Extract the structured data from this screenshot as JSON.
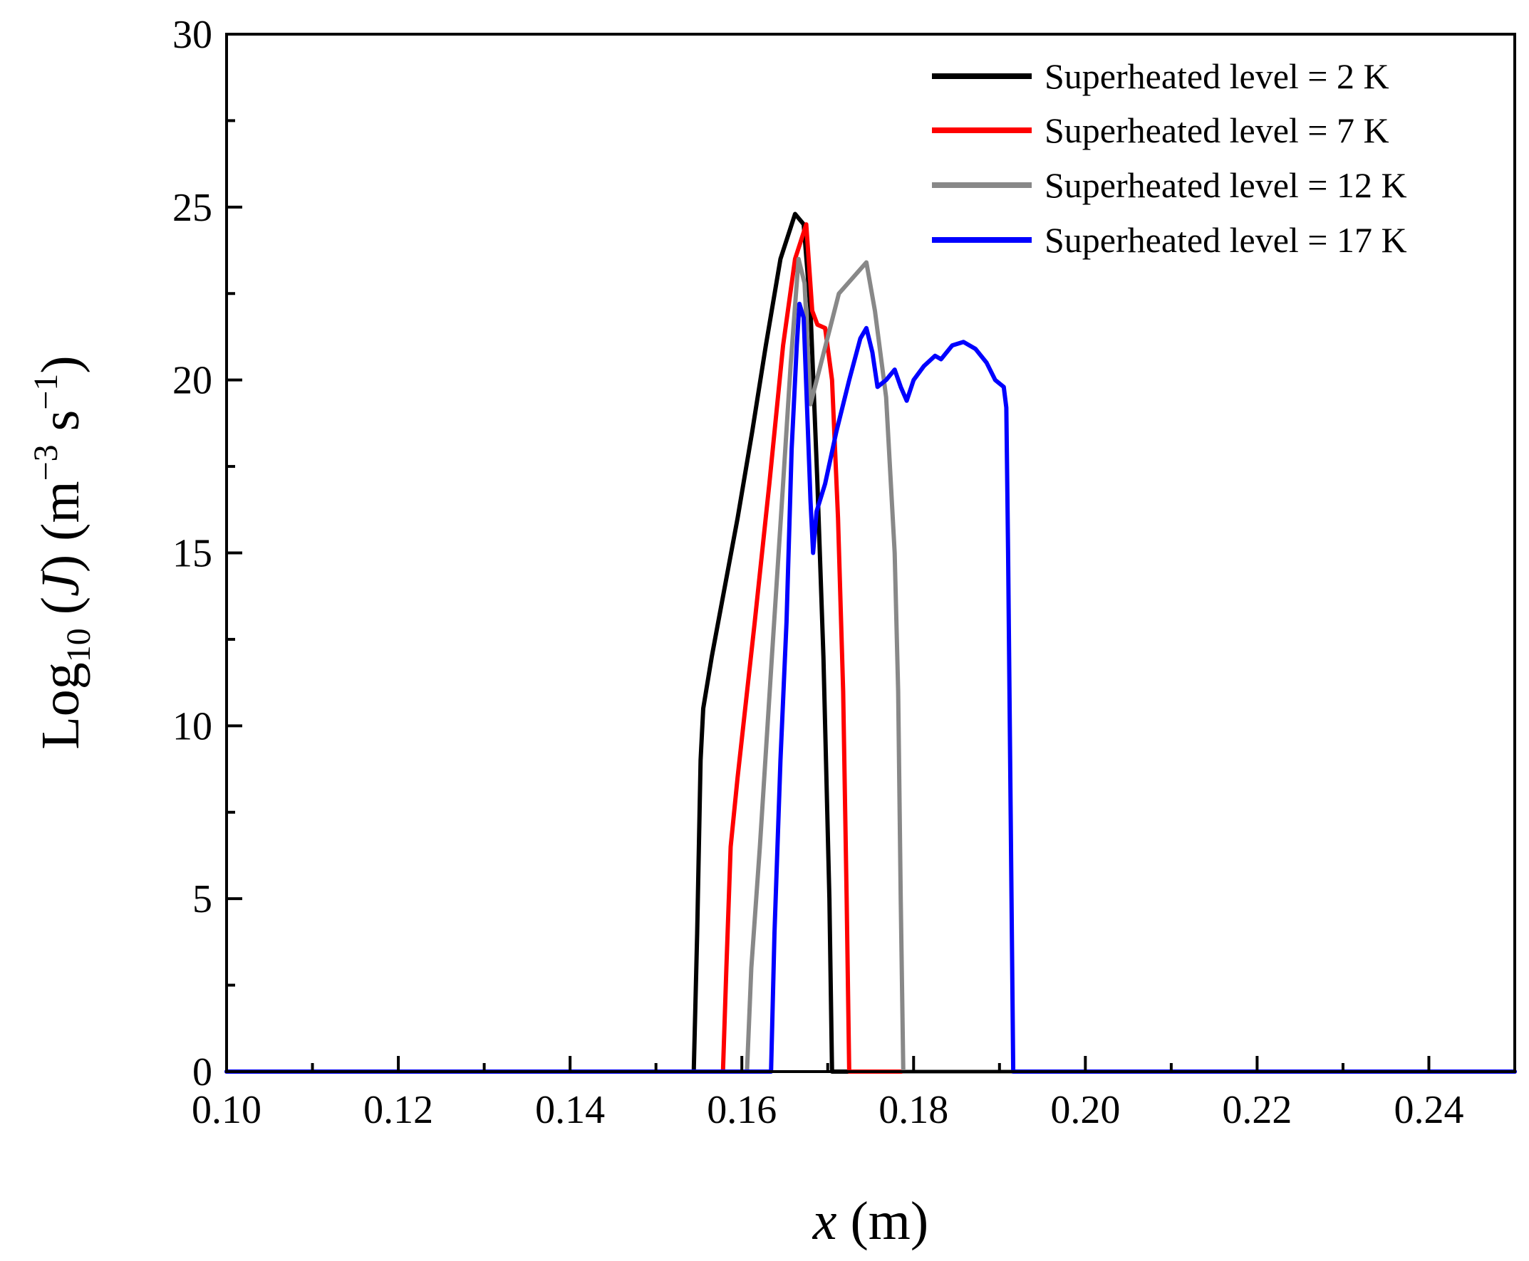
{
  "chart_data": {
    "type": "line",
    "title": "",
    "xlabel": {
      "italic": "x",
      "rest": " (m)"
    },
    "ylabel": {
      "prefix": "Log",
      "sub": "10",
      "mid": " (",
      "italic": "J",
      "unit_open": ") (m",
      "sup1": "−3",
      "unit_mid": " s",
      "sup2": "−1",
      "unit_close": ")"
    },
    "xlim": [
      0.1,
      0.25
    ],
    "ylim": [
      0,
      30
    ],
    "xticks": [
      "0.10",
      "0.12",
      "0.14",
      "0.16",
      "0.18",
      "0.20",
      "0.22",
      "0.24"
    ],
    "xtick_values": [
      0.1,
      0.12,
      0.14,
      0.16,
      0.18,
      0.2,
      0.22,
      0.24
    ],
    "xminor_values": [
      0.11,
      0.13,
      0.15,
      0.17,
      0.19,
      0.21,
      0.23,
      0.25
    ],
    "yticks": [
      "0",
      "5",
      "10",
      "15",
      "20",
      "25",
      "30"
    ],
    "ytick_values": [
      0,
      5,
      10,
      15,
      20,
      25,
      30
    ],
    "yminor_values": [
      2.5,
      7.5,
      12.5,
      17.5,
      22.5,
      27.5
    ],
    "grid": false,
    "legend_position": "top-right",
    "series": [
      {
        "name": "Superheated level = 2 K",
        "color": "#000000",
        "points": [
          [
            0.1,
            0
          ],
          [
            0.1544,
            0
          ],
          [
            0.1548,
            4
          ],
          [
            0.1552,
            9
          ],
          [
            0.1555,
            10.5
          ],
          [
            0.1565,
            12
          ],
          [
            0.158,
            14
          ],
          [
            0.1595,
            16
          ],
          [
            0.1612,
            18.5
          ],
          [
            0.1628,
            21
          ],
          [
            0.1645,
            23.5
          ],
          [
            0.1662,
            24.8
          ],
          [
            0.1672,
            24.5
          ],
          [
            0.168,
            22
          ],
          [
            0.1688,
            17
          ],
          [
            0.1695,
            12
          ],
          [
            0.1702,
            5
          ],
          [
            0.1705,
            0
          ],
          [
            0.25,
            0
          ]
        ]
      },
      {
        "name": "Superheated level = 7 K",
        "color": "#ff0000",
        "points": [
          [
            0.1,
            0
          ],
          [
            0.1578,
            0
          ],
          [
            0.1582,
            3
          ],
          [
            0.1587,
            6.5
          ],
          [
            0.1595,
            8.5
          ],
          [
            0.1615,
            13
          ],
          [
            0.1632,
            17
          ],
          [
            0.1648,
            21
          ],
          [
            0.1662,
            23.5
          ],
          [
            0.1675,
            24.5
          ],
          [
            0.1682,
            22
          ],
          [
            0.1688,
            21.6
          ],
          [
            0.1697,
            21.5
          ],
          [
            0.1705,
            20
          ],
          [
            0.1712,
            16
          ],
          [
            0.1718,
            11
          ],
          [
            0.1722,
            5
          ],
          [
            0.1725,
            0
          ],
          [
            0.25,
            0
          ]
        ]
      },
      {
        "name": "Superheated level = 12 K",
        "color": "#888888",
        "points": [
          [
            0.1,
            0
          ],
          [
            0.1606,
            0
          ],
          [
            0.1611,
            3
          ],
          [
            0.1621,
            6.5
          ],
          [
            0.1635,
            12
          ],
          [
            0.1648,
            17
          ],
          [
            0.1657,
            20.5
          ],
          [
            0.1666,
            23.5
          ],
          [
            0.1673,
            22.8
          ],
          [
            0.168,
            19.3
          ],
          [
            0.1713,
            22.5
          ],
          [
            0.1745,
            23.4
          ],
          [
            0.1755,
            22
          ],
          [
            0.1768,
            19.5
          ],
          [
            0.1778,
            15
          ],
          [
            0.1782,
            11
          ],
          [
            0.1785,
            5
          ],
          [
            0.1788,
            0
          ],
          [
            0.25,
            0
          ]
        ]
      },
      {
        "name": "Superheated level = 17 K",
        "color": "#0000ff",
        "points": [
          [
            0.1,
            0
          ],
          [
            0.1634,
            0
          ],
          [
            0.1638,
            4
          ],
          [
            0.1645,
            9
          ],
          [
            0.1652,
            13
          ],
          [
            0.1658,
            18
          ],
          [
            0.1664,
            21
          ],
          [
            0.1667,
            22.2
          ],
          [
            0.1672,
            21.8
          ],
          [
            0.1677,
            18.5
          ],
          [
            0.168,
            16.5
          ],
          [
            0.1683,
            15
          ],
          [
            0.1687,
            16.2
          ],
          [
            0.1697,
            17
          ],
          [
            0.171,
            18.5
          ],
          [
            0.1725,
            20
          ],
          [
            0.1738,
            21.2
          ],
          [
            0.1745,
            21.5
          ],
          [
            0.1752,
            20.8
          ],
          [
            0.1758,
            19.8
          ],
          [
            0.1768,
            20
          ],
          [
            0.1778,
            20.3
          ],
          [
            0.1785,
            19.8
          ],
          [
            0.1792,
            19.4
          ],
          [
            0.18,
            20
          ],
          [
            0.1812,
            20.4
          ],
          [
            0.1825,
            20.7
          ],
          [
            0.1832,
            20.6
          ],
          [
            0.1845,
            21
          ],
          [
            0.1858,
            21.1
          ],
          [
            0.1872,
            20.9
          ],
          [
            0.1885,
            20.5
          ],
          [
            0.1895,
            20
          ],
          [
            0.1905,
            19.8
          ],
          [
            0.1908,
            19.2
          ],
          [
            0.191,
            15
          ],
          [
            0.1912,
            10
          ],
          [
            0.1914,
            5
          ],
          [
            0.1916,
            0
          ],
          [
            0.25,
            0
          ]
        ]
      }
    ]
  }
}
